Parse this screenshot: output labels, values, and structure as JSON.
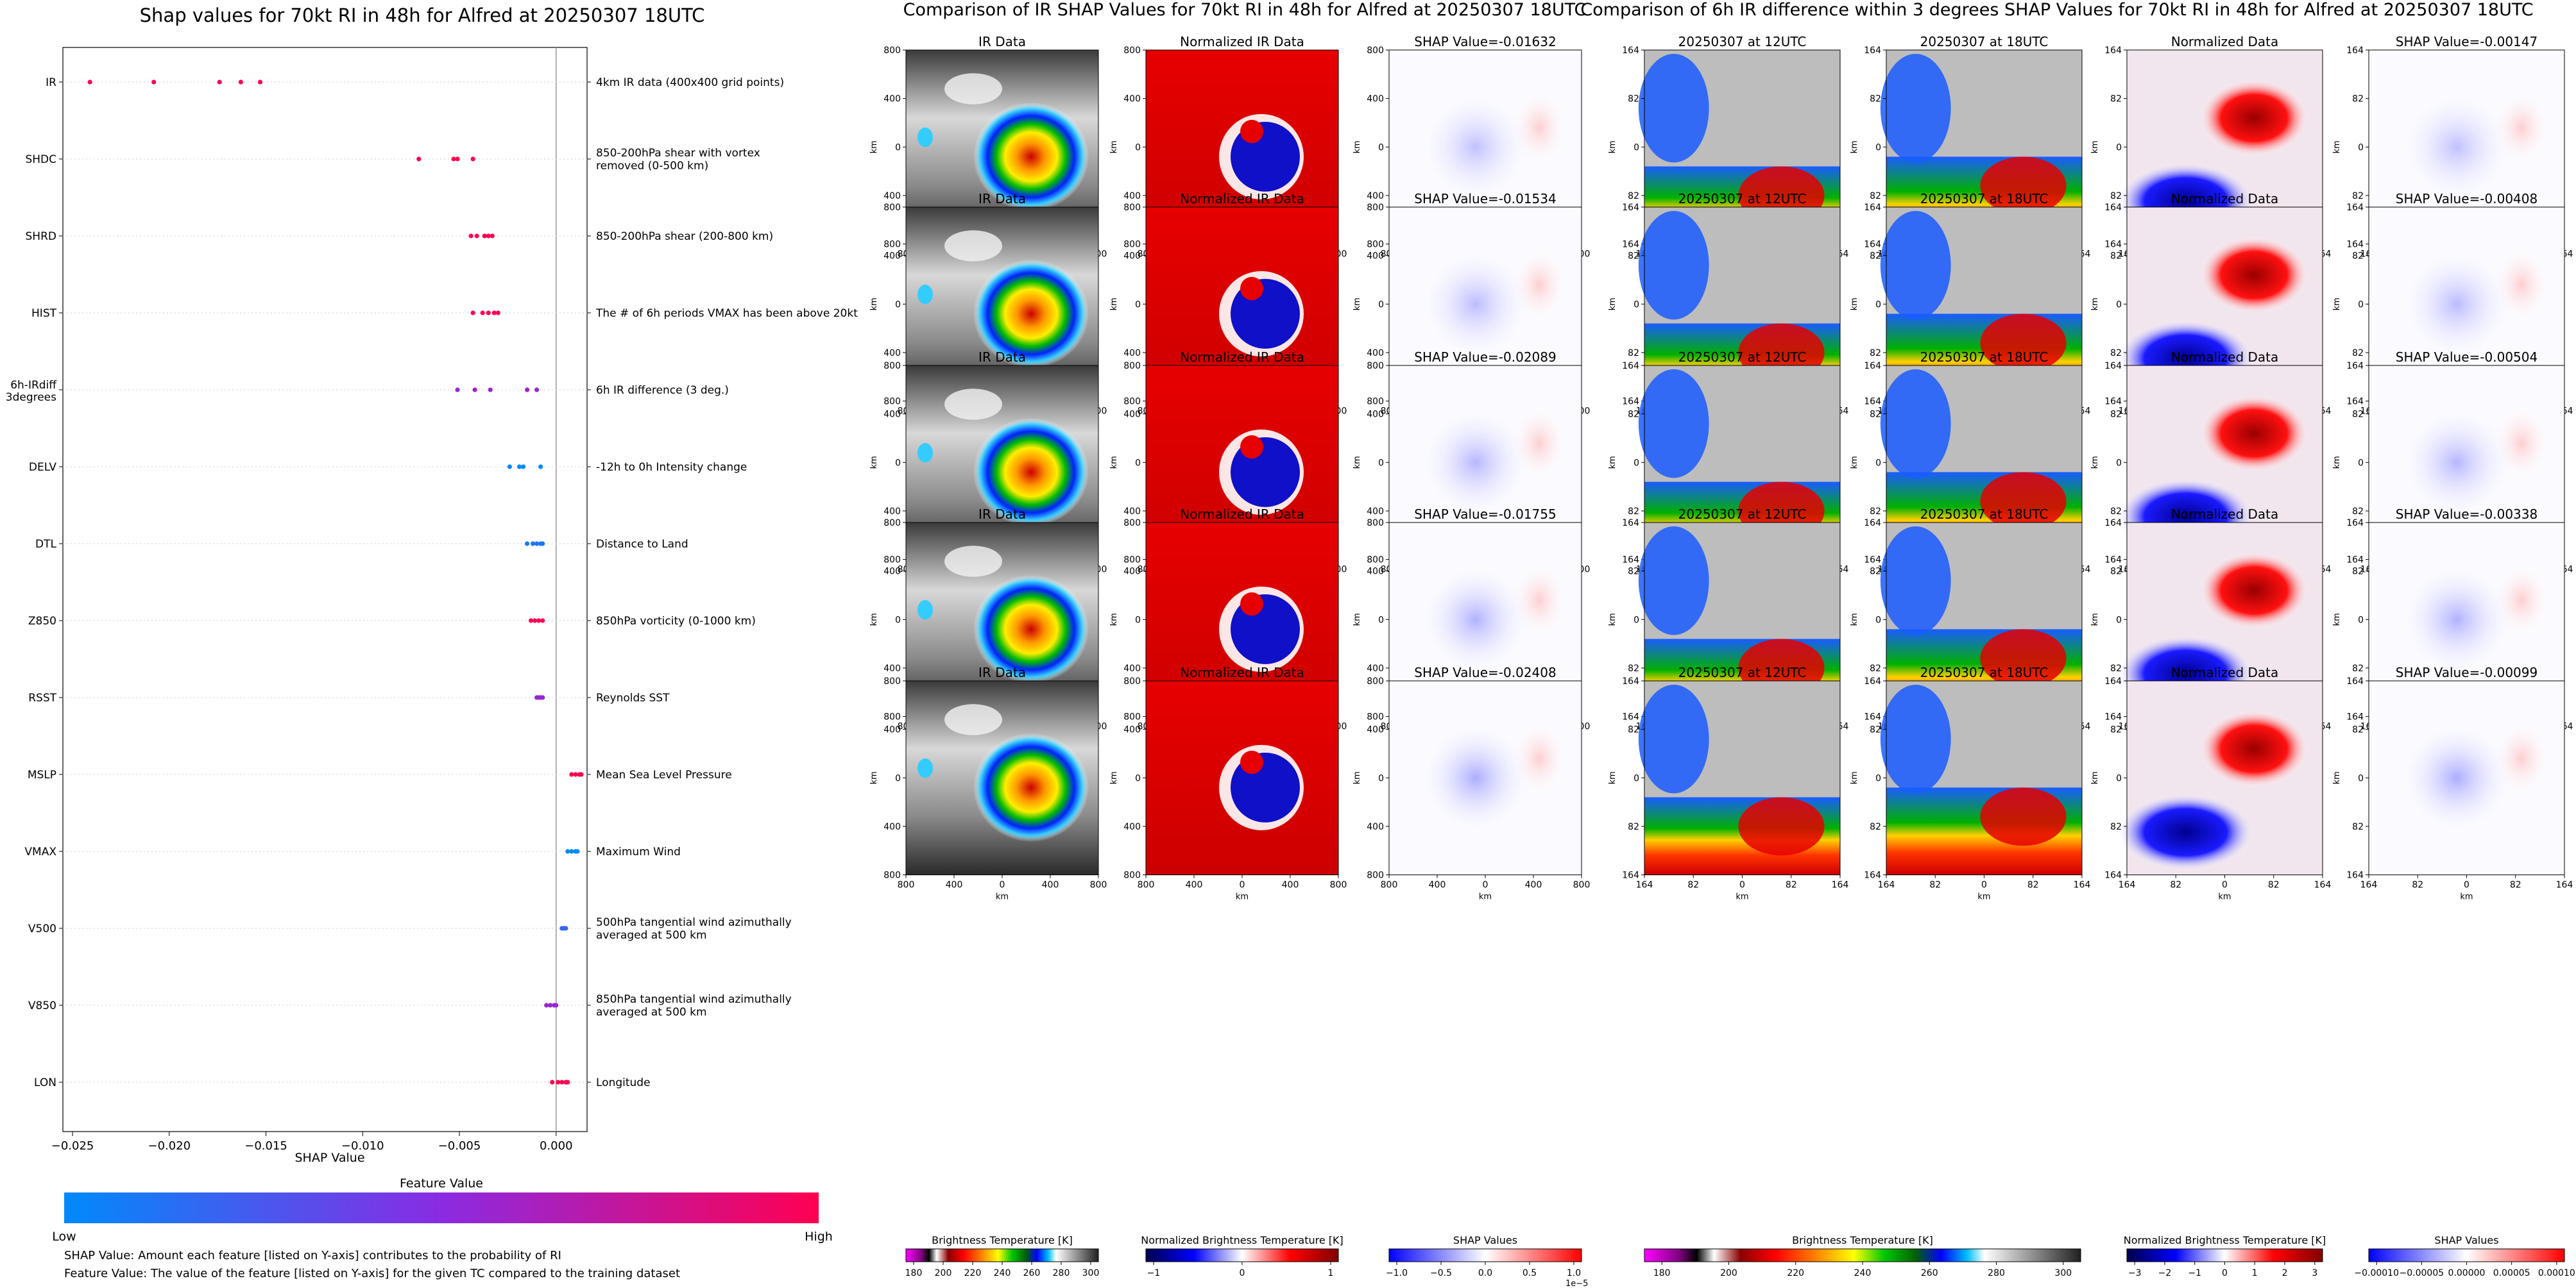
{
  "left_panel": {
    "title": "Shap values for 70kt RI in 48h for Alfred at 20250307 18UTC",
    "xlabel": "SHAP Value",
    "colorbar_label": "Feature Value",
    "low_label": "Low",
    "high_label": "High",
    "footnote_1": "SHAP Value: Amount each feature [listed on Y-axis] contributes to the probability of RI",
    "footnote_2": "Feature Value: The value of the feature [listed on Y-axis] for the given TC compared to the training dataset"
  },
  "middle_panel": {
    "title": "Comparison of IR SHAP Values for 70kt RI in 48h for Alfred at 20250307 18UTC",
    "col_titles": [
      "IR Data",
      "Normalized IR Data"
    ],
    "shap_titles": [
      "SHAP Value=-0.01632",
      "SHAP Value=-0.01534",
      "SHAP Value=-0.02089",
      "SHAP Value=-0.01755",
      "SHAP Value=-0.02408"
    ],
    "axis_label": "km",
    "x_ticks": [
      "800",
      "400",
      "0",
      "400",
      "800"
    ],
    "y_ticks": [
      "800",
      "400",
      "0",
      "400",
      "800"
    ],
    "cbar_labels": [
      "Brightness Temperature [K]",
      "Normalized Brightness Temperature [K]",
      "SHAP Values"
    ],
    "cbar1_ticks": [
      "180",
      "200",
      "220",
      "240",
      "260",
      "280",
      "300"
    ],
    "cbar2_ticks": [
      "−1",
      "0",
      "1"
    ],
    "cbar3_ticks": [
      "−1.0",
      "−0.5",
      "0.0",
      "0.5",
      "1.0"
    ],
    "cbar3_exponent": "1e−5"
  },
  "right_panel": {
    "title": "Comparison of 6h IR difference within 3 degrees SHAP Values for 70kt RI in 48h for Alfred at 20250307 18UTC",
    "col_titles": [
      "20250307 at 12UTC",
      "20250307 at 18UTC",
      "Normalized Data"
    ],
    "shap_titles": [
      "SHAP Value=-0.00147",
      "SHAP Value=-0.00408",
      "SHAP Value=-0.00504",
      "SHAP Value=-0.00338",
      "SHAP Value=-0.00099"
    ],
    "axis_label": "km",
    "x_ticks": [
      "164",
      "82",
      "0",
      "82",
      "164"
    ],
    "y_ticks": [
      "164",
      "82",
      "0",
      "82",
      "164"
    ],
    "cbar_labels": [
      "Brightness Temperature [K]",
      "Normalized Brightness Temperature [K]",
      "SHAP Values"
    ],
    "cbar1_ticks": [
      "180",
      "200",
      "220",
      "240",
      "260",
      "280",
      "300"
    ],
    "cbar2_ticks": [
      "−3",
      "−2",
      "−1",
      "0",
      "1",
      "2",
      "3"
    ],
    "cbar3_ticks": [
      "−0.00010",
      "−0.00005",
      "0.00000",
      "0.00005",
      "0.00010"
    ]
  },
  "colors": {
    "low": "#008afb",
    "mid": "#8a2be2",
    "high": "#ff0051",
    "shap_pos": "#d62728",
    "shap_neg": "#3b4cc0"
  },
  "chart_data": [
    {
      "type": "scatter",
      "title": "Shap values for 70kt RI in 48h for Alfred at 20250307 18UTC",
      "xlabel": "SHAP Value",
      "x_ticks": [
        -0.025,
        -0.02,
        -0.015,
        -0.01,
        -0.005,
        0.0
      ],
      "xlim": [
        -0.0255,
        0.0016
      ],
      "features": [
        {
          "name": "IR",
          "description": "4km IR data (400x400 grid points)",
          "points": [
            [
              -0.0241,
              1
            ],
            [
              -0.0208,
              1
            ],
            [
              -0.0174,
              0.95
            ],
            [
              -0.0163,
              1
            ],
            [
              -0.0153,
              1
            ]
          ]
        },
        {
          "name": "SHDC",
          "description": "850-200hPa shear with vortex removed (0-500 km)",
          "points": [
            [
              -0.0071,
              1
            ],
            [
              -0.0053,
              1
            ],
            [
              -0.0051,
              1
            ],
            [
              -0.0043,
              1
            ]
          ]
        },
        {
          "name": "SHRD",
          "description": "850-200hPa shear (200-800 km)",
          "points": [
            [
              -0.0044,
              1
            ],
            [
              -0.0041,
              1
            ],
            [
              -0.0037,
              1
            ],
            [
              -0.0035,
              1
            ],
            [
              -0.0033,
              1
            ]
          ]
        },
        {
          "name": "HIST",
          "description": "The # of 6h periods VMAX has been above 20kt",
          "points": [
            [
              -0.0043,
              1
            ],
            [
              -0.0038,
              1
            ],
            [
              -0.0035,
              1
            ],
            [
              -0.0032,
              1
            ],
            [
              -0.003,
              1
            ]
          ]
        },
        {
          "name": "6h-IRdiff 3degrees",
          "description": "6h IR difference (3 deg.)",
          "points": [
            [
              -0.0051,
              0.55
            ],
            [
              -0.0042,
              0.6
            ],
            [
              -0.0034,
              0.55
            ],
            [
              -0.0015,
              0.6
            ],
            [
              -0.001,
              0.55
            ]
          ]
        },
        {
          "name": "DELV",
          "description": "-12h to 0h Intensity change",
          "points": [
            [
              -0.0024,
              0
            ],
            [
              -0.0019,
              0
            ],
            [
              -0.0017,
              0
            ],
            [
              -0.0008,
              0
            ]
          ]
        },
        {
          "name": "DTL",
          "description": "Distance to Land",
          "points": [
            [
              -0.0015,
              0.1
            ],
            [
              -0.0012,
              0.1
            ],
            [
              -0.001,
              0.1
            ],
            [
              -0.0008,
              0.1
            ],
            [
              -0.0007,
              0.1
            ]
          ]
        },
        {
          "name": "Z850",
          "description": "850hPa vorticity (0-1000 km)",
          "points": [
            [
              -0.0013,
              1
            ],
            [
              -0.0011,
              1
            ],
            [
              -0.0009,
              1
            ],
            [
              -0.0007,
              1
            ]
          ]
        },
        {
          "name": "RSST",
          "description": "Reynolds SST",
          "points": [
            [
              -0.001,
              0.55
            ],
            [
              -0.0009,
              0.55
            ],
            [
              -0.0008,
              0.55
            ],
            [
              -0.0007,
              0.55
            ]
          ]
        },
        {
          "name": "MSLP",
          "description": "Mean Sea Level Pressure",
          "points": [
            [
              0.0008,
              1
            ],
            [
              0.001,
              1
            ],
            [
              0.0012,
              1
            ],
            [
              0.0013,
              1
            ]
          ]
        },
        {
          "name": "VMAX",
          "description": "Maximum Wind",
          "points": [
            [
              0.0006,
              0
            ],
            [
              0.0008,
              0
            ],
            [
              0.001,
              0
            ],
            [
              0.0011,
              0
            ]
          ]
        },
        {
          "name": "V500",
          "description": "500hPa tangential wind azimuthally averaged at 500 km",
          "points": [
            [
              0.0003,
              0.2
            ],
            [
              0.0004,
              0.2
            ],
            [
              0.0005,
              0.2
            ]
          ]
        },
        {
          "name": "V850",
          "description": "850hPa tangential wind azimuthally averaged at 500 km",
          "points": [
            [
              -0.0005,
              0.55
            ],
            [
              -0.0003,
              0.55
            ],
            [
              -0.0001,
              0.55
            ],
            [
              0.0,
              0.55
            ]
          ]
        },
        {
          "name": "LON",
          "description": "Longitude",
          "points": [
            [
              -0.0002,
              1
            ],
            [
              0.0001,
              1
            ],
            [
              0.0003,
              1
            ],
            [
              0.0005,
              1
            ],
            [
              0.0006,
              1
            ]
          ]
        }
      ]
    }
  ]
}
